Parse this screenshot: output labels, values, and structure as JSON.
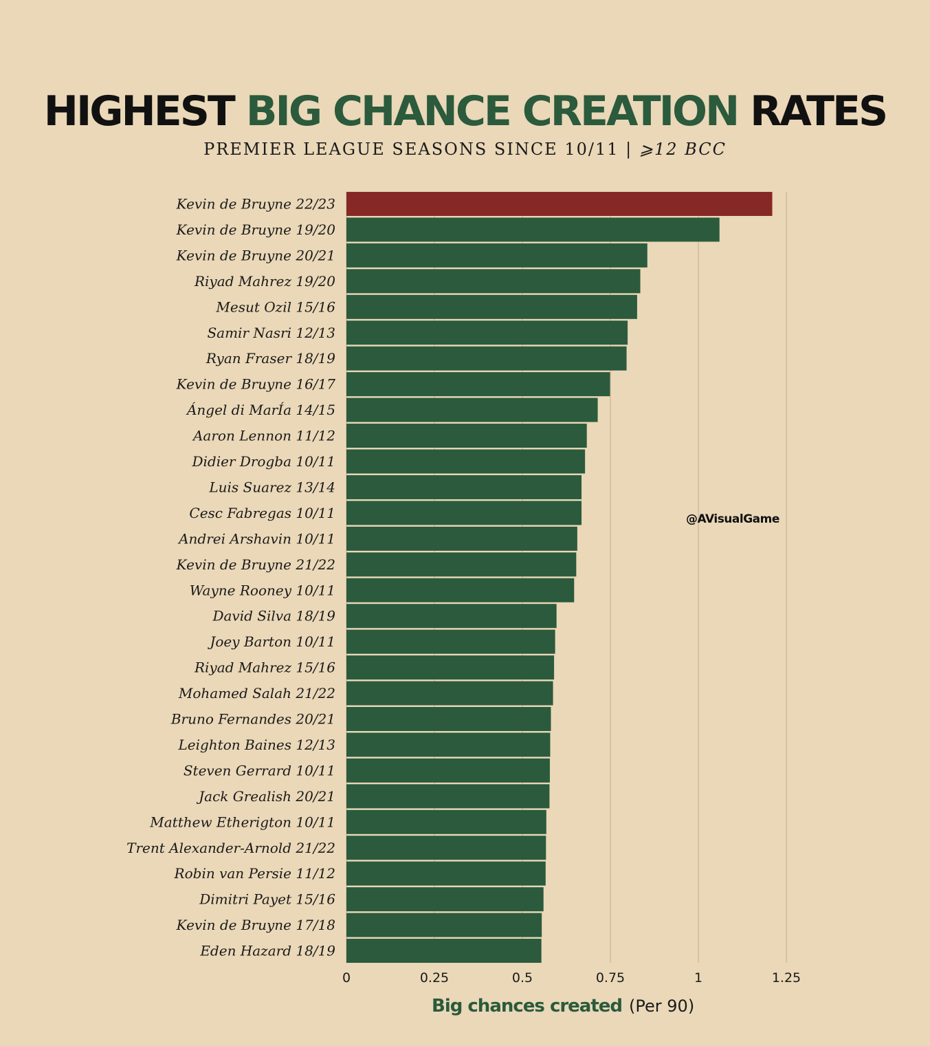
{
  "title": {
    "part1": "HIGHEST ",
    "part2": "BIG CHANCE CREATION",
    "part3": " RATES"
  },
  "subtitle": {
    "main": "PREMIER LEAGUE SEASONS SINCE 10/11  |  ",
    "emphasis": "⩾12 BCC"
  },
  "watermark": "@AVisualGame",
  "colors": {
    "background": "#ead8b8",
    "bar": "#2b5a3c",
    "highlight": "#862926",
    "text": "#1a1a1a"
  },
  "chart_data": {
    "type": "bar",
    "orientation": "horizontal",
    "xlabel": "Big chances created",
    "xlabel_suffix": "(Per 90)",
    "xlim": [
      0,
      1.25
    ],
    "xticks": [
      "0",
      "0.25",
      "0.5",
      "0.75",
      "1",
      "1.25"
    ],
    "grid": "vertical",
    "highlight_index": 0,
    "categories": [
      "Kevin de Bruyne 22/23",
      "Kevin de Bruyne 19/20",
      "Kevin de Bruyne 20/21",
      "Riyad Mahrez 19/20",
      "Mesut Ozil 15/16",
      "Samir Nasri 12/13",
      "Ryan Fraser 18/19",
      "Kevin de Bruyne 16/17",
      "Ángel di MarÍa 14/15",
      "Aaron Lennon 11/12",
      "Didier Drogba 10/11",
      "Luis Suarez 13/14",
      "Cesc Fabregas 10/11",
      "Andrei Arshavin 10/11",
      "Kevin de Bruyne 21/22",
      "Wayne Rooney 10/11",
      "David Silva 18/19",
      "Joey Barton 10/11",
      "Riyad Mahrez 15/16",
      "Mohamed Salah 21/22",
      "Bruno Fernandes 20/21",
      "Leighton Baines 12/13",
      "Steven Gerrard 10/11",
      "Jack Grealish 20/21",
      "Matthew Etherigton 10/11",
      "Trent Alexander-Arnold 21/22",
      "Robin van Persie 11/12",
      "Dimitri Payet 15/16",
      "Kevin de Bruyne 17/18",
      "Eden Hazard 18/19"
    ],
    "values": [
      1.21,
      1.06,
      0.855,
      0.835,
      0.826,
      0.799,
      0.796,
      0.749,
      0.714,
      0.683,
      0.678,
      0.668,
      0.668,
      0.656,
      0.653,
      0.647,
      0.597,
      0.593,
      0.59,
      0.587,
      0.581,
      0.579,
      0.578,
      0.577,
      0.568,
      0.567,
      0.566,
      0.56,
      0.555,
      0.554
    ]
  }
}
